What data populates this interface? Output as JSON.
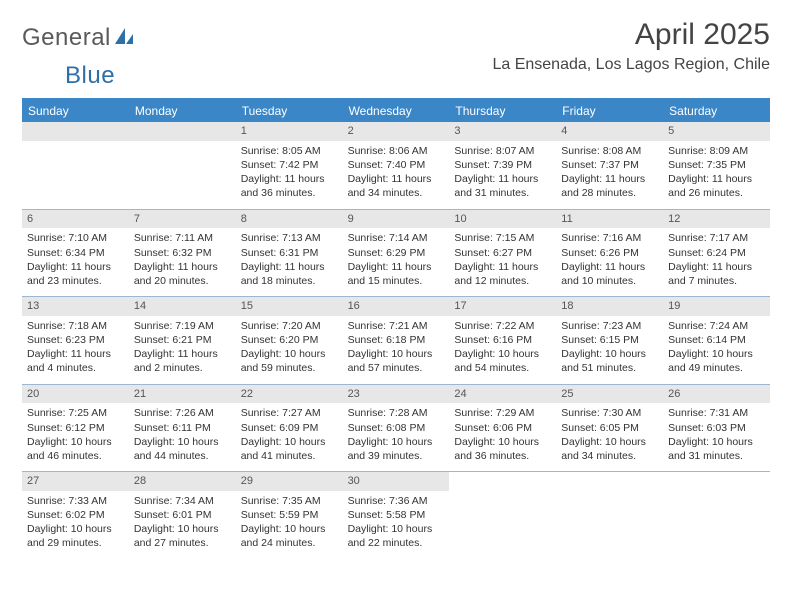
{
  "logo": {
    "text1": "General",
    "text2": "Blue",
    "shape_color": "#2f6fa8"
  },
  "title": "April 2025",
  "location": "La Ensenada, Los Lagos Region, Chile",
  "colors": {
    "header_bg": "#3b86c6",
    "daynum_bg": "#e7e7e7",
    "rule": "#9ab8d4",
    "text": "#333333"
  },
  "daysOfWeek": [
    "Sunday",
    "Monday",
    "Tuesday",
    "Wednesday",
    "Thursday",
    "Friday",
    "Saturday"
  ],
  "startOffset": 2,
  "days": [
    {
      "n": 1,
      "sunrise": "8:05 AM",
      "sunset": "7:42 PM",
      "daylight": "11 hours and 36 minutes."
    },
    {
      "n": 2,
      "sunrise": "8:06 AM",
      "sunset": "7:40 PM",
      "daylight": "11 hours and 34 minutes."
    },
    {
      "n": 3,
      "sunrise": "8:07 AM",
      "sunset": "7:39 PM",
      "daylight": "11 hours and 31 minutes."
    },
    {
      "n": 4,
      "sunrise": "8:08 AM",
      "sunset": "7:37 PM",
      "daylight": "11 hours and 28 minutes."
    },
    {
      "n": 5,
      "sunrise": "8:09 AM",
      "sunset": "7:35 PM",
      "daylight": "11 hours and 26 minutes."
    },
    {
      "n": 6,
      "sunrise": "7:10 AM",
      "sunset": "6:34 PM",
      "daylight": "11 hours and 23 minutes."
    },
    {
      "n": 7,
      "sunrise": "7:11 AM",
      "sunset": "6:32 PM",
      "daylight": "11 hours and 20 minutes."
    },
    {
      "n": 8,
      "sunrise": "7:13 AM",
      "sunset": "6:31 PM",
      "daylight": "11 hours and 18 minutes."
    },
    {
      "n": 9,
      "sunrise": "7:14 AM",
      "sunset": "6:29 PM",
      "daylight": "11 hours and 15 minutes."
    },
    {
      "n": 10,
      "sunrise": "7:15 AM",
      "sunset": "6:27 PM",
      "daylight": "11 hours and 12 minutes."
    },
    {
      "n": 11,
      "sunrise": "7:16 AM",
      "sunset": "6:26 PM",
      "daylight": "11 hours and 10 minutes."
    },
    {
      "n": 12,
      "sunrise": "7:17 AM",
      "sunset": "6:24 PM",
      "daylight": "11 hours and 7 minutes."
    },
    {
      "n": 13,
      "sunrise": "7:18 AM",
      "sunset": "6:23 PM",
      "daylight": "11 hours and 4 minutes."
    },
    {
      "n": 14,
      "sunrise": "7:19 AM",
      "sunset": "6:21 PM",
      "daylight": "11 hours and 2 minutes."
    },
    {
      "n": 15,
      "sunrise": "7:20 AM",
      "sunset": "6:20 PM",
      "daylight": "10 hours and 59 minutes."
    },
    {
      "n": 16,
      "sunrise": "7:21 AM",
      "sunset": "6:18 PM",
      "daylight": "10 hours and 57 minutes."
    },
    {
      "n": 17,
      "sunrise": "7:22 AM",
      "sunset": "6:16 PM",
      "daylight": "10 hours and 54 minutes."
    },
    {
      "n": 18,
      "sunrise": "7:23 AM",
      "sunset": "6:15 PM",
      "daylight": "10 hours and 51 minutes."
    },
    {
      "n": 19,
      "sunrise": "7:24 AM",
      "sunset": "6:14 PM",
      "daylight": "10 hours and 49 minutes."
    },
    {
      "n": 20,
      "sunrise": "7:25 AM",
      "sunset": "6:12 PM",
      "daylight": "10 hours and 46 minutes."
    },
    {
      "n": 21,
      "sunrise": "7:26 AM",
      "sunset": "6:11 PM",
      "daylight": "10 hours and 44 minutes."
    },
    {
      "n": 22,
      "sunrise": "7:27 AM",
      "sunset": "6:09 PM",
      "daylight": "10 hours and 41 minutes."
    },
    {
      "n": 23,
      "sunrise": "7:28 AM",
      "sunset": "6:08 PM",
      "daylight": "10 hours and 39 minutes."
    },
    {
      "n": 24,
      "sunrise": "7:29 AM",
      "sunset": "6:06 PM",
      "daylight": "10 hours and 36 minutes."
    },
    {
      "n": 25,
      "sunrise": "7:30 AM",
      "sunset": "6:05 PM",
      "daylight": "10 hours and 34 minutes."
    },
    {
      "n": 26,
      "sunrise": "7:31 AM",
      "sunset": "6:03 PM",
      "daylight": "10 hours and 31 minutes."
    },
    {
      "n": 27,
      "sunrise": "7:33 AM",
      "sunset": "6:02 PM",
      "daylight": "10 hours and 29 minutes."
    },
    {
      "n": 28,
      "sunrise": "7:34 AM",
      "sunset": "6:01 PM",
      "daylight": "10 hours and 27 minutes."
    },
    {
      "n": 29,
      "sunrise": "7:35 AM",
      "sunset": "5:59 PM",
      "daylight": "10 hours and 24 minutes."
    },
    {
      "n": 30,
      "sunrise": "7:36 AM",
      "sunset": "5:58 PM",
      "daylight": "10 hours and 22 minutes."
    }
  ],
  "labels": {
    "sunrise": "Sunrise: ",
    "sunset": "Sunset: ",
    "daylight": "Daylight: "
  }
}
